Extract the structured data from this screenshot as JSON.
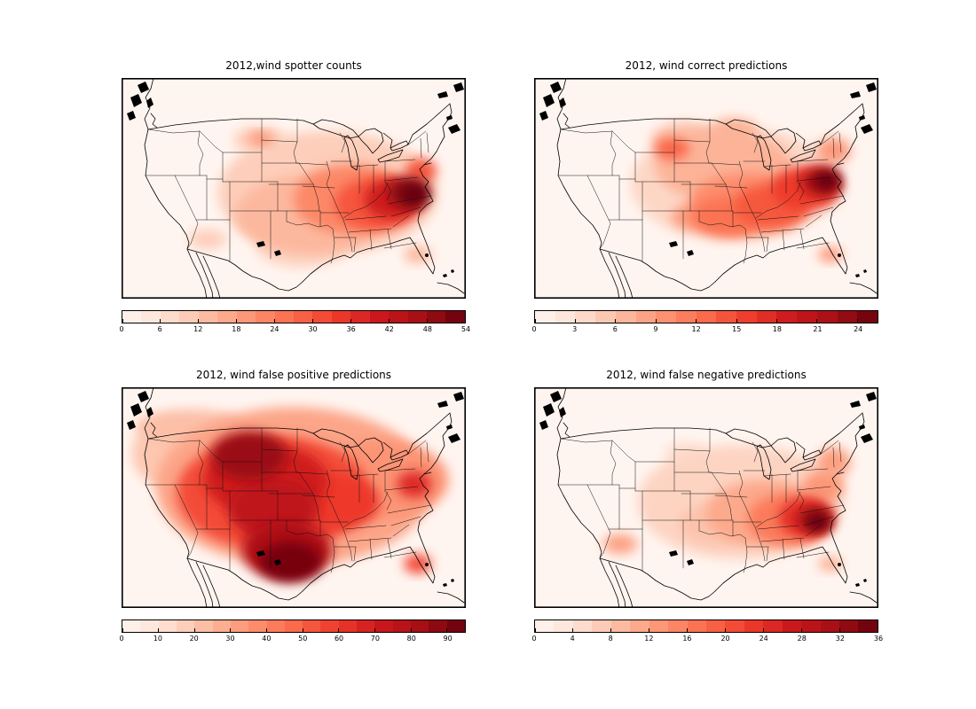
{
  "figure": {
    "background": "#ffffff",
    "colormap": {
      "name": "Reds",
      "stops": [
        "#fff5f0",
        "#fee0d2",
        "#fcbba1",
        "#fc9272",
        "#fb6a4a",
        "#ef3b2c",
        "#cb181d",
        "#a50f15",
        "#67000d"
      ]
    }
  },
  "chart_data": [
    {
      "type": "contour-heatmap",
      "title": "2012,wind spotter counts",
      "colormap": "Reds",
      "vmin": 0,
      "vmax": 54,
      "colorbar_ticks": [
        0,
        6,
        12,
        18,
        24,
        30,
        36,
        42,
        48,
        54
      ],
      "colorbar_segments": 18,
      "region": "contiguous United States",
      "hotspots": [
        {
          "region": "eastern-us-broad",
          "x": 0.6,
          "y": 0.52,
          "rx": 0.32,
          "ry": 0.28,
          "value": 10
        },
        {
          "region": "south-central",
          "x": 0.55,
          "y": 0.62,
          "rx": 0.22,
          "ry": 0.18,
          "value": 14
        },
        {
          "region": "texas-light",
          "x": 0.52,
          "y": 0.76,
          "rx": 0.13,
          "ry": 0.1,
          "value": 9
        },
        {
          "region": "tennessee-valley",
          "x": 0.67,
          "y": 0.55,
          "rx": 0.17,
          "ry": 0.16,
          "value": 22
        },
        {
          "region": "deep-south",
          "x": 0.74,
          "y": 0.57,
          "rx": 0.12,
          "ry": 0.12,
          "value": 30
        },
        {
          "region": "georgia-carolinas",
          "x": 0.79,
          "y": 0.55,
          "rx": 0.085,
          "ry": 0.09,
          "value": 40
        },
        {
          "region": "carolinas-core",
          "x": 0.835,
          "y": 0.52,
          "rx": 0.06,
          "ry": 0.07,
          "value": 50
        },
        {
          "region": "carolinas-peak",
          "x": 0.85,
          "y": 0.53,
          "rx": 0.04,
          "ry": 0.05,
          "value": 54
        },
        {
          "region": "virginia-coast",
          "x": 0.87,
          "y": 0.42,
          "rx": 0.045,
          "ry": 0.055,
          "value": 30
        },
        {
          "region": "northern-plains-light",
          "x": 0.4,
          "y": 0.28,
          "rx": 0.075,
          "ry": 0.06,
          "value": 10
        },
        {
          "region": "black-hills-spot",
          "x": 0.405,
          "y": 0.275,
          "rx": 0.035,
          "ry": 0.03,
          "value": 20
        },
        {
          "region": "arizona-spot",
          "x": 0.25,
          "y": 0.73,
          "rx": 0.055,
          "ry": 0.045,
          "value": 10
        },
        {
          "region": "florida-spot",
          "x": 0.86,
          "y": 0.8,
          "rx": 0.04,
          "ry": 0.04,
          "value": 14
        }
      ]
    },
    {
      "type": "contour-heatmap",
      "title": "2012, wind correct predictions",
      "colormap": "Reds",
      "vmin": 0,
      "vmax": 25.5,
      "colorbar_ticks": [
        0,
        3,
        6,
        9,
        12,
        15,
        18,
        21,
        24
      ],
      "colorbar_segments": 17,
      "region": "contiguous United States",
      "hotspots": [
        {
          "region": "eastern-us-broad",
          "x": 0.58,
          "y": 0.48,
          "rx": 0.3,
          "ry": 0.26,
          "value": 4
        },
        {
          "region": "midwest",
          "x": 0.55,
          "y": 0.4,
          "rx": 0.2,
          "ry": 0.16,
          "value": 7
        },
        {
          "region": "mid-south",
          "x": 0.62,
          "y": 0.57,
          "rx": 0.17,
          "ry": 0.14,
          "value": 10
        },
        {
          "region": "tennessee-alabama",
          "x": 0.69,
          "y": 0.58,
          "rx": 0.11,
          "ry": 0.1,
          "value": 14
        },
        {
          "region": "arkansas",
          "x": 0.56,
          "y": 0.63,
          "rx": 0.1,
          "ry": 0.09,
          "value": 12
        },
        {
          "region": "oklahoma",
          "x": 0.47,
          "y": 0.63,
          "rx": 0.07,
          "ry": 0.06,
          "value": 9
        },
        {
          "region": "appalachians",
          "x": 0.79,
          "y": 0.5,
          "rx": 0.1,
          "ry": 0.1,
          "value": 16
        },
        {
          "region": "virginia-carolina-core",
          "x": 0.835,
          "y": 0.47,
          "rx": 0.06,
          "ry": 0.065,
          "value": 22
        },
        {
          "region": "virginia-carolina-peak",
          "x": 0.85,
          "y": 0.465,
          "rx": 0.035,
          "ry": 0.045,
          "value": 25.5
        },
        {
          "region": "wyoming-dakota-spot",
          "x": 0.4,
          "y": 0.32,
          "rx": 0.05,
          "ry": 0.05,
          "value": 13
        },
        {
          "region": "northern-plains-light",
          "x": 0.44,
          "y": 0.28,
          "rx": 0.1,
          "ry": 0.08,
          "value": 6
        },
        {
          "region": "minnesota-light",
          "x": 0.58,
          "y": 0.24,
          "rx": 0.07,
          "ry": 0.06,
          "value": 7
        },
        {
          "region": "northeast-coast",
          "x": 0.87,
          "y": 0.33,
          "rx": 0.05,
          "ry": 0.06,
          "value": 9
        },
        {
          "region": "florida-spot",
          "x": 0.86,
          "y": 0.8,
          "rx": 0.035,
          "ry": 0.035,
          "value": 9
        }
      ]
    },
    {
      "type": "contour-heatmap",
      "title": "2012, wind false positive predictions",
      "colormap": "Reds",
      "vmin": 0,
      "vmax": 95,
      "colorbar_ticks": [
        0,
        10,
        20,
        30,
        40,
        50,
        60,
        70,
        80,
        90
      ],
      "colorbar_segments": 19,
      "region": "contiguous United States",
      "hotspots": [
        {
          "region": "conus-broad",
          "x": 0.5,
          "y": 0.45,
          "rx": 0.4,
          "ry": 0.36,
          "value": 30
        },
        {
          "region": "west-coast",
          "x": 0.15,
          "y": 0.3,
          "rx": 0.12,
          "ry": 0.16,
          "value": 20
        },
        {
          "region": "pacific-northwest",
          "x": 0.2,
          "y": 0.18,
          "rx": 0.16,
          "ry": 0.08,
          "value": 22
        },
        {
          "region": "eastern-us",
          "x": 0.75,
          "y": 0.42,
          "rx": 0.2,
          "ry": 0.18,
          "value": 35
        },
        {
          "region": "central-plains-broad",
          "x": 0.44,
          "y": 0.48,
          "rx": 0.28,
          "ry": 0.26,
          "value": 55
        },
        {
          "region": "midwest-dark",
          "x": 0.63,
          "y": 0.52,
          "rx": 0.12,
          "ry": 0.12,
          "value": 60
        },
        {
          "region": "nebraska-kansas",
          "x": 0.42,
          "y": 0.42,
          "rx": 0.18,
          "ry": 0.16,
          "value": 70
        },
        {
          "region": "wyoming-dakota-dark",
          "x": 0.37,
          "y": 0.31,
          "rx": 0.11,
          "ry": 0.11,
          "value": 85
        },
        {
          "region": "kansas-oklahoma",
          "x": 0.44,
          "y": 0.55,
          "rx": 0.13,
          "ry": 0.14,
          "value": 75
        },
        {
          "region": "texas-dark",
          "x": 0.48,
          "y": 0.74,
          "rx": 0.13,
          "ry": 0.13,
          "value": 80
        },
        {
          "region": "texas-peak",
          "x": 0.49,
          "y": 0.79,
          "rx": 0.09,
          "ry": 0.09,
          "value": 92
        },
        {
          "region": "carolina-coast-spot",
          "x": 0.85,
          "y": 0.44,
          "rx": 0.05,
          "ry": 0.06,
          "value": 65
        },
        {
          "region": "florida-spot",
          "x": 0.86,
          "y": 0.8,
          "rx": 0.04,
          "ry": 0.045,
          "value": 55
        }
      ]
    },
    {
      "type": "contour-heatmap",
      "title": "2012, wind false negative predictions",
      "colormap": "Reds",
      "vmin": 0,
      "vmax": 36,
      "colorbar_ticks": [
        0,
        4,
        8,
        12,
        16,
        20,
        24,
        28,
        32,
        36
      ],
      "colorbar_segments": 18,
      "region": "contiguous United States",
      "hotspots": [
        {
          "region": "eastern-us-broad",
          "x": 0.6,
          "y": 0.52,
          "rx": 0.3,
          "ry": 0.26,
          "value": 6
        },
        {
          "region": "south-central-light",
          "x": 0.55,
          "y": 0.62,
          "rx": 0.13,
          "ry": 0.1,
          "value": 8
        },
        {
          "region": "southeast",
          "x": 0.67,
          "y": 0.57,
          "rx": 0.17,
          "ry": 0.15,
          "value": 11
        },
        {
          "region": "georgia-alabama",
          "x": 0.74,
          "y": 0.6,
          "rx": 0.12,
          "ry": 0.12,
          "value": 16
        },
        {
          "region": "south-carolina-georgia",
          "x": 0.79,
          "y": 0.59,
          "rx": 0.08,
          "ry": 0.09,
          "value": 24
        },
        {
          "region": "sc-ga-coast-core",
          "x": 0.815,
          "y": 0.6,
          "rx": 0.05,
          "ry": 0.06,
          "value": 32
        },
        {
          "region": "sc-ga-coast-peak",
          "x": 0.825,
          "y": 0.61,
          "rx": 0.032,
          "ry": 0.04,
          "value": 36
        },
        {
          "region": "virginia-carolina",
          "x": 0.84,
          "y": 0.45,
          "rx": 0.06,
          "ry": 0.07,
          "value": 13
        },
        {
          "region": "mid-atlantic-coast",
          "x": 0.87,
          "y": 0.34,
          "rx": 0.05,
          "ry": 0.07,
          "value": 12
        },
        {
          "region": "arizona-spot",
          "x": 0.25,
          "y": 0.71,
          "rx": 0.05,
          "ry": 0.045,
          "value": 12
        },
        {
          "region": "florida-spot",
          "x": 0.86,
          "y": 0.8,
          "rx": 0.035,
          "ry": 0.035,
          "value": 10
        },
        {
          "region": "dakota-light",
          "x": 0.44,
          "y": 0.3,
          "rx": 0.06,
          "ry": 0.05,
          "value": 5
        }
      ]
    }
  ]
}
